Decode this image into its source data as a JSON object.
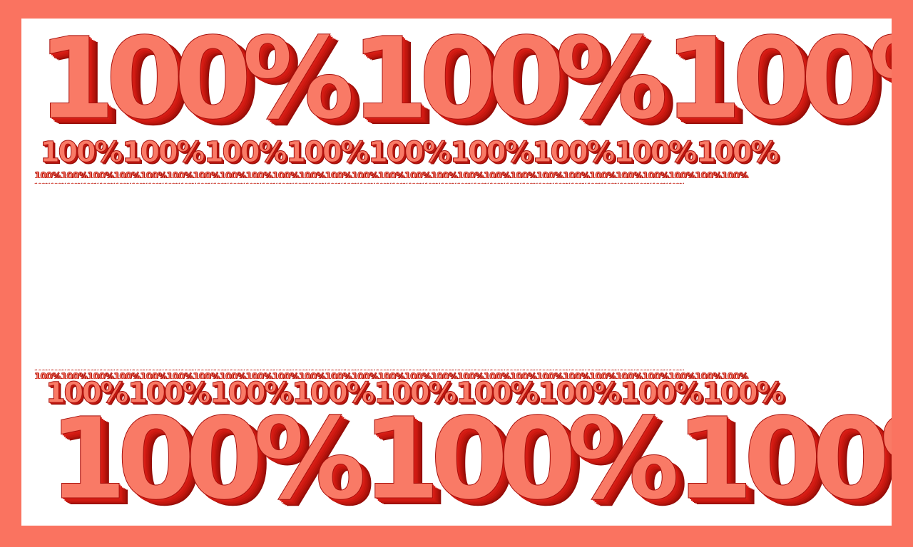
{
  "image": {
    "border_color": "#fa7360",
    "canvas_color": "#ffffff",
    "text_fill": "#f97a66",
    "text_shade": "#a8100c",
    "label": "100%"
  }
}
